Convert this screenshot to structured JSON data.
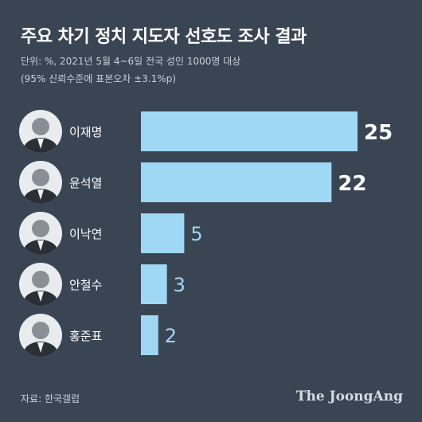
{
  "header": {
    "title": "주요 차기 정치 지도자 선호도 조사 결과",
    "subtitle_line1": "단위: %, 2021년 5월 4~6일 전국 성인 1000명 대상",
    "subtitle_line2": "(95% 신뢰수준에 표본오차 ±3.1%p)"
  },
  "footer": {
    "source": "자료: 한국갤럽",
    "brand": "The JoongAng"
  },
  "colors": {
    "background": "#3a4554",
    "bar": "#9fd8f4",
    "label_white": "#ffffff",
    "label_light": "#9fd8f4"
  },
  "chart_data": {
    "type": "bar",
    "orientation": "horizontal",
    "title": "주요 차기 정치 지도자 선호도 조사 결과",
    "categories": [
      "이재명",
      "윤석열",
      "이낙연",
      "안철수",
      "홍준표"
    ],
    "values": [
      25,
      22,
      5,
      3,
      2
    ],
    "data_labels": [
      "25",
      "22",
      "5",
      "3",
      "2"
    ],
    "unit": "%",
    "xlim": [
      0,
      25
    ],
    "grid": false,
    "legend": "none"
  }
}
